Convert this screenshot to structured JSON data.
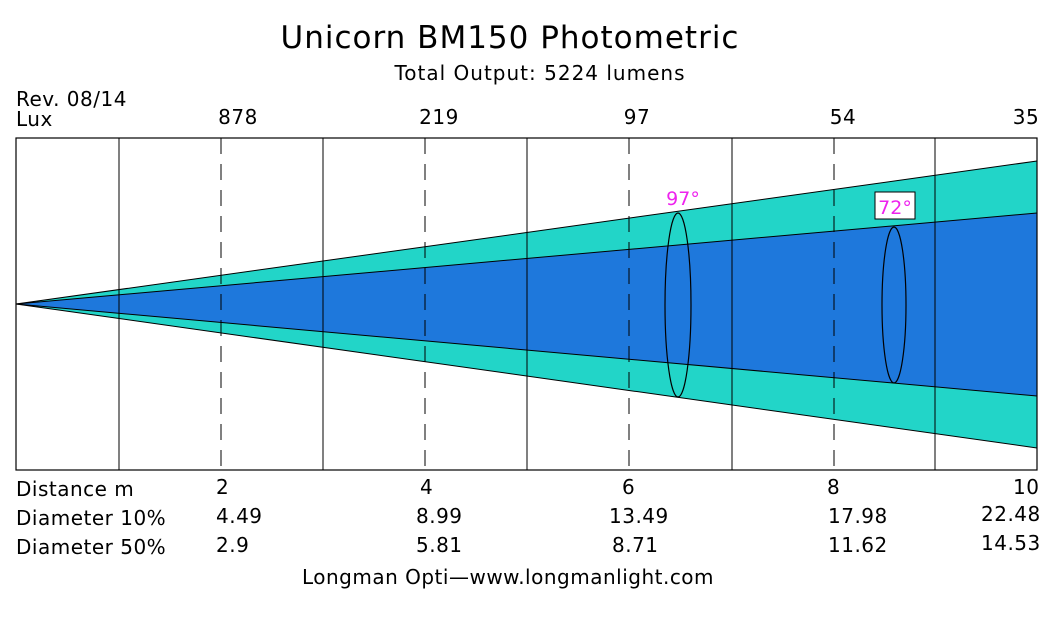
{
  "title": "Unicorn  BM150 Photometric",
  "subtitle": "Total  Output: 5224  lumens",
  "revision": "Rev.  08/14",
  "lux_label": "Lux",
  "lux_values": [
    "878",
    "219",
    "97",
    "54",
    "35"
  ],
  "distance_label": "Distance  m",
  "diameter10_label": "Diameter  10%",
  "diameter50_label": "Diameter  50%",
  "distances": [
    "2",
    "4",
    "6",
    "8",
    "10"
  ],
  "diameter10": [
    "4.49",
    "8.99",
    "13.49",
    "17.98",
    "22.48"
  ],
  "diameter50": [
    "2.9",
    "5.81",
    "8.71",
    "11.62",
    "14.53"
  ],
  "beam_angle_10": "97°",
  "beam_angle_50": "72°",
  "footer": "Longman  Opti—www.longmanlight.com",
  "colors": {
    "outer_beam": "#22d5c8",
    "inner_beam": "#1e78dc",
    "angle_text": "#ee22ee",
    "lines": "#000000"
  }
}
